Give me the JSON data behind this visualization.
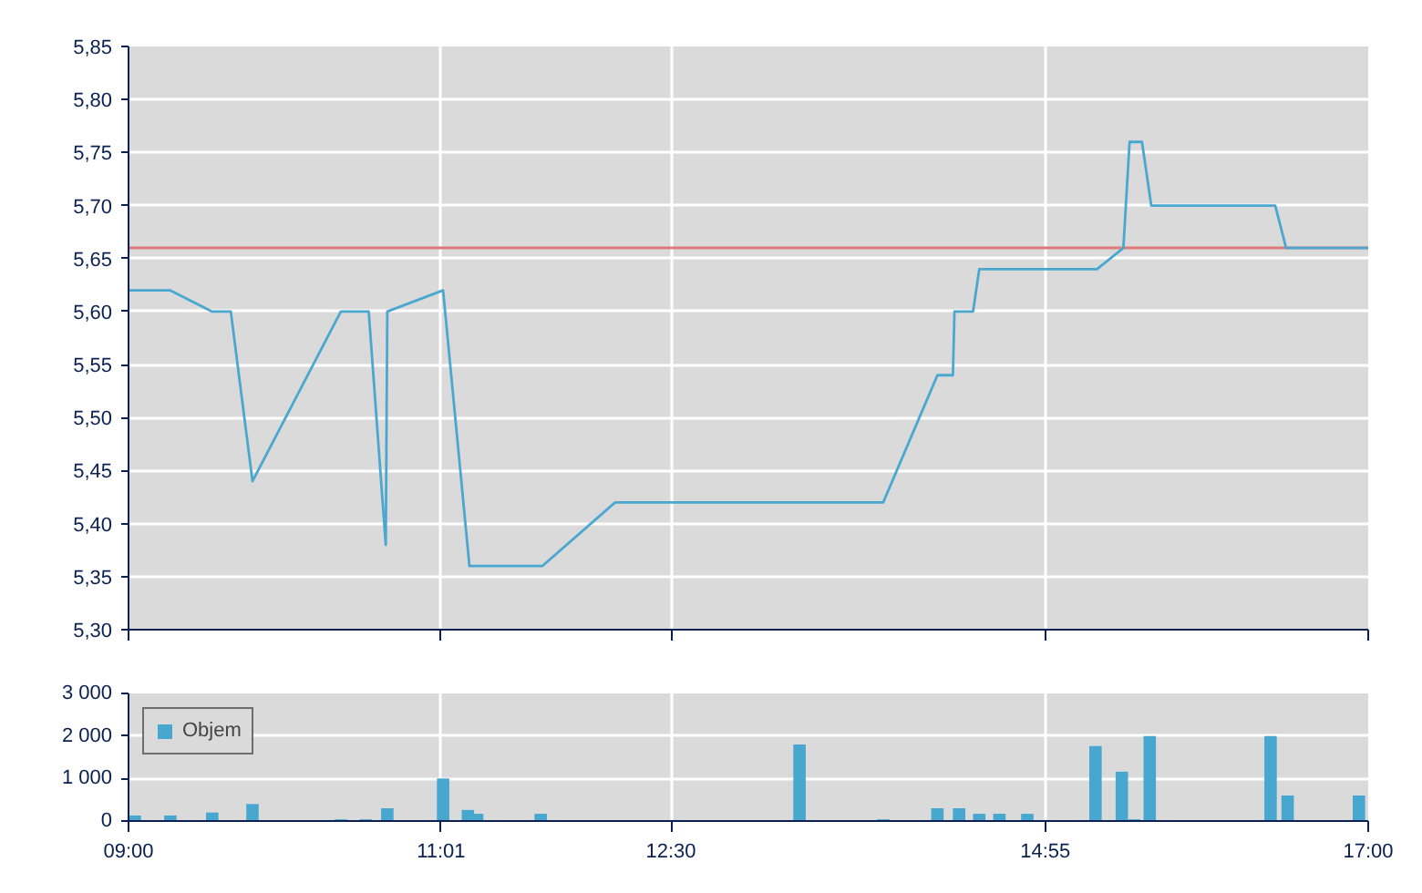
{
  "chart_data": [
    {
      "type": "line",
      "x": [
        9.0,
        9.27,
        9.54,
        9.66,
        9.8,
        10.37,
        10.55,
        10.66,
        10.67,
        11.03,
        11.2,
        11.67,
        12.14,
        13.87,
        14.22,
        14.32,
        14.33,
        14.45,
        14.49,
        15.25,
        15.42,
        15.46,
        15.54,
        15.6,
        16.4,
        16.47,
        17.0
      ],
      "series": [
        {
          "color": "#4aa8d0",
          "values": [
            5.62,
            5.62,
            5.6,
            5.6,
            5.44,
            5.6,
            5.6,
            5.38,
            5.6,
            5.62,
            5.36,
            5.36,
            5.42,
            5.42,
            5.54,
            5.54,
            5.6,
            5.6,
            5.64,
            5.64,
            5.66,
            5.76,
            5.76,
            5.7,
            5.7,
            5.66,
            5.66
          ]
        }
      ],
      "xlim": [
        9,
        17
      ],
      "xticks": [
        {
          "value": 9,
          "label": null
        },
        {
          "value": 11.0167,
          "label": null
        },
        {
          "value": 12.5,
          "label": null
        },
        {
          "value": 14.9167,
          "label": null
        },
        {
          "value": 17,
          "label": null
        }
      ],
      "ylim": [
        5.3,
        5.85
      ],
      "yticks": [
        {
          "value": 5.3,
          "label": "5,30"
        },
        {
          "value": 5.35,
          "label": "5,35"
        },
        {
          "value": 5.4,
          "label": "5,40"
        },
        {
          "value": 5.45,
          "label": "5,45"
        },
        {
          "value": 5.5,
          "label": "5,50"
        },
        {
          "value": 5.55,
          "label": "5,55"
        },
        {
          "value": 5.6,
          "label": "5,60"
        },
        {
          "value": 5.65,
          "label": "5,65"
        },
        {
          "value": 5.7,
          "label": "5,70"
        },
        {
          "value": 5.75,
          "label": "5,75"
        },
        {
          "value": 5.8,
          "label": "5,80"
        },
        {
          "value": 5.85,
          "label": "5,85"
        }
      ],
      "ref_lines": [
        {
          "axis": "y",
          "value": 5.66,
          "color": "#e07a7a"
        }
      ],
      "grid": true,
      "tick_labels": "y"
    },
    {
      "type": "bar",
      "x": [
        9.04,
        9.27,
        9.54,
        9.8,
        10.37,
        10.53,
        10.67,
        11.03,
        11.19,
        11.25,
        11.66,
        13.33,
        13.87,
        14.22,
        14.36,
        14.49,
        14.62,
        14.8,
        15.24,
        15.41,
        15.49,
        15.59,
        16.37,
        16.48,
        16.94
      ],
      "series": [
        {
          "name": "Objem",
          "color": "#47a7cf",
          "values": [
            130,
            130,
            200,
            400,
            40,
            40,
            300,
            1000,
            260,
            170,
            170,
            1800,
            40,
            300,
            300,
            170,
            170,
            170,
            1760,
            1160,
            40,
            2000,
            2000,
            600,
            600
          ]
        }
      ],
      "xlim": [
        9,
        17
      ],
      "xticks": [
        {
          "value": 9,
          "label": "09:00"
        },
        {
          "value": 11.0167,
          "label": "11:01"
        },
        {
          "value": 12.5,
          "label": "12:30"
        },
        {
          "value": 14.9167,
          "label": "14:55"
        },
        {
          "value": 17,
          "label": "17:00"
        }
      ],
      "ylim": [
        0,
        3000
      ],
      "yticks": [
        0,
        {
          "value": 1000,
          "label": "1 000"
        },
        {
          "value": 2000,
          "label": "2 000"
        },
        {
          "value": 3000,
          "label": "3 000"
        }
      ],
      "grid": true,
      "legend": "top left"
    }
  ]
}
